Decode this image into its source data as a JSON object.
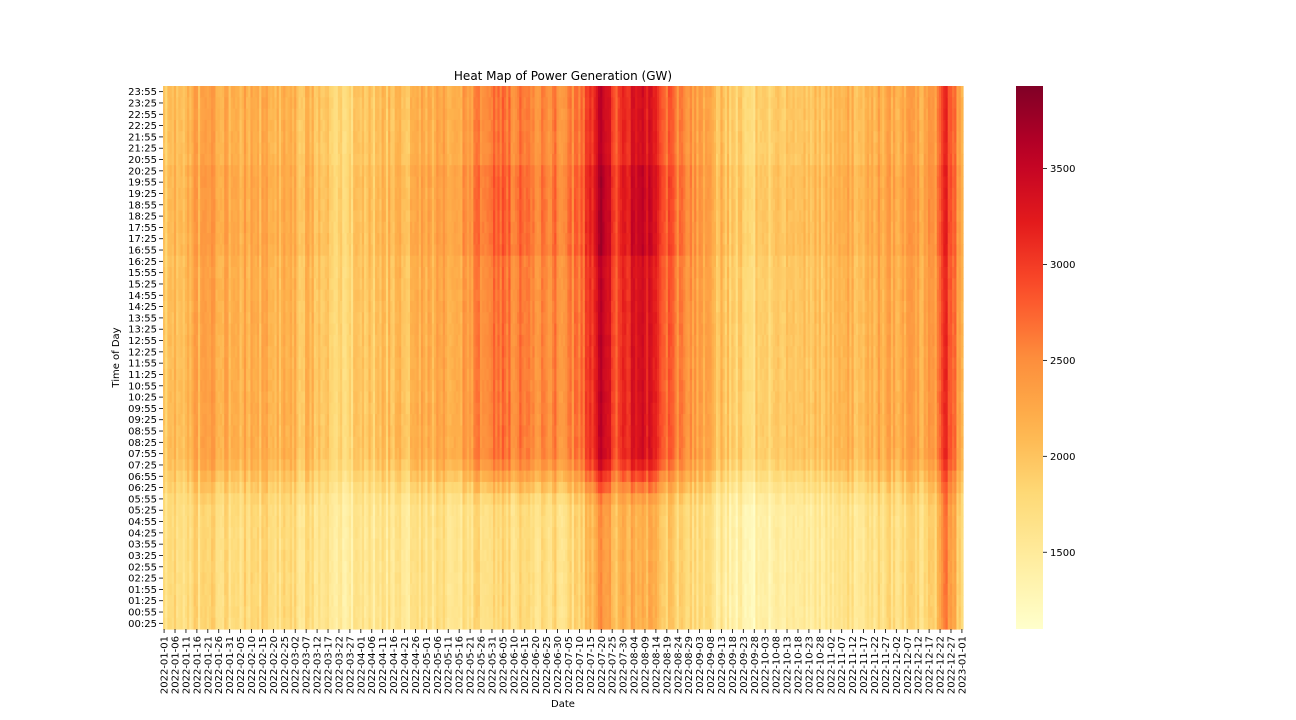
{
  "chart_data": {
    "type": "heatmap",
    "title": "Heat Map of Power Generation (GW)",
    "xlabel": "Date",
    "ylabel": "Time of Day",
    "x_start": "2022-01-01",
    "x_end": "2023-01-01",
    "x_tick_labels": [
      "2022-01-01",
      "2022-01-06",
      "2022-01-11",
      "2022-01-16",
      "2022-01-21",
      "2022-01-26",
      "2022-01-31",
      "2022-02-05",
      "2022-02-10",
      "2022-02-15",
      "2022-02-20",
      "2022-02-25",
      "2022-03-02",
      "2022-03-07",
      "2022-03-12",
      "2022-03-17",
      "2022-03-22",
      "2022-03-27",
      "2022-04-01",
      "2022-04-06",
      "2022-04-11",
      "2022-04-16",
      "2022-04-21",
      "2022-04-26",
      "2022-05-01",
      "2022-05-06",
      "2022-05-11",
      "2022-05-16",
      "2022-05-21",
      "2022-05-26",
      "2022-05-31",
      "2022-06-05",
      "2022-06-10",
      "2022-06-15",
      "2022-06-20",
      "2022-06-25",
      "2022-06-30",
      "2022-07-05",
      "2022-07-10",
      "2022-07-15",
      "2022-07-20",
      "2022-07-25",
      "2022-07-30",
      "2022-08-04",
      "2022-08-09",
      "2022-08-14",
      "2022-08-19",
      "2022-08-24",
      "2022-08-29",
      "2022-09-03",
      "2022-09-08",
      "2022-09-13",
      "2022-09-18",
      "2022-09-23",
      "2022-09-28",
      "2022-10-03",
      "2022-10-08",
      "2022-10-13",
      "2022-10-18",
      "2022-10-23",
      "2022-10-28",
      "2022-11-02",
      "2022-11-07",
      "2022-11-12",
      "2022-11-17",
      "2022-11-22",
      "2022-11-27",
      "2022-12-02",
      "2022-12-07",
      "2022-12-12",
      "2022-12-17",
      "2022-12-22",
      "2022-12-27",
      "2023-01-01"
    ],
    "y_tick_labels": [
      "23:55",
      "23:25",
      "22:55",
      "22:25",
      "21:55",
      "21:25",
      "20:55",
      "20:25",
      "19:55",
      "19:25",
      "18:55",
      "18:25",
      "17:55",
      "17:25",
      "16:55",
      "16:25",
      "15:55",
      "15:25",
      "14:55",
      "14:25",
      "13:55",
      "13:25",
      "12:55",
      "12:25",
      "11:55",
      "11:25",
      "10:55",
      "10:25",
      "09:55",
      "09:25",
      "08:55",
      "08:25",
      "07:55",
      "07:25",
      "06:55",
      "06:25",
      "05:55",
      "05:25",
      "04:55",
      "04:25",
      "03:55",
      "03:25",
      "02:55",
      "02:25",
      "01:55",
      "01:25",
      "00:55",
      "00:25"
    ],
    "colorbar": {
      "colormap": "YlOrRd",
      "vmin": 1100,
      "vmax": 3930,
      "ticks": [
        1500,
        2000,
        2500,
        3000,
        3500
      ]
    },
    "daily_level_profile": [
      {
        "date": "2022-01-01",
        "day": 1950,
        "night": 1700
      },
      {
        "date": "2022-01-20",
        "day": 2300,
        "night": 1800
      },
      {
        "date": "2022-02-15",
        "day": 2150,
        "night": 1750
      },
      {
        "date": "2022-03-10",
        "day": 2050,
        "night": 1650
      },
      {
        "date": "2022-03-20",
        "day": 1800,
        "night": 1480
      },
      {
        "date": "2022-04-15",
        "day": 2050,
        "night": 1600
      },
      {
        "date": "2022-05-15",
        "day": 2250,
        "night": 1650
      },
      {
        "date": "2022-06-01",
        "day": 2650,
        "night": 1750
      },
      {
        "date": "2022-06-25",
        "day": 2500,
        "night": 1700
      },
      {
        "date": "2022-07-10",
        "day": 2600,
        "night": 1800
      },
      {
        "date": "2022-07-21",
        "day": 3600,
        "night": 2500
      },
      {
        "date": "2022-07-27",
        "day": 2800,
        "night": 2000
      },
      {
        "date": "2022-08-07",
        "day": 3500,
        "night": 2300
      },
      {
        "date": "2022-08-20",
        "day": 2700,
        "night": 1900
      },
      {
        "date": "2022-09-05",
        "day": 2200,
        "night": 1650
      },
      {
        "date": "2022-09-25",
        "day": 1800,
        "night": 1300
      },
      {
        "date": "2022-10-15",
        "day": 2000,
        "night": 1500
      },
      {
        "date": "2022-11-15",
        "day": 2150,
        "night": 1650
      },
      {
        "date": "2022-12-20",
        "day": 2300,
        "night": 1800
      },
      {
        "date": "2022-12-24",
        "day": 3100,
        "night": 2600
      },
      {
        "date": "2023-01-01",
        "day": 2250,
        "night": 1850
      }
    ]
  }
}
